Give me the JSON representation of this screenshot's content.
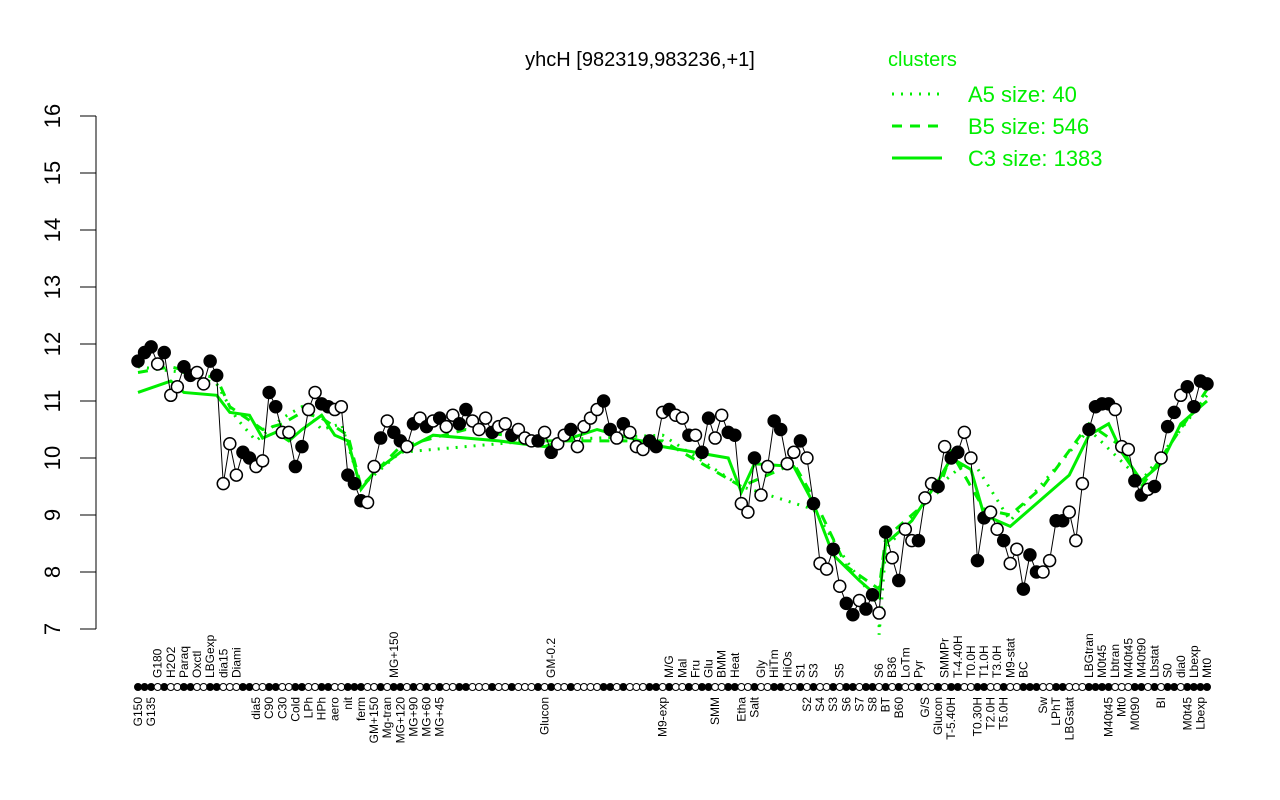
{
  "chart_data": {
    "type": "line",
    "title": "yhcH [982319,983236,+1]",
    "xlabel": "",
    "ylabel": "",
    "ylim": [
      7,
      16
    ],
    "yticks": [
      7,
      8,
      9,
      10,
      11,
      12,
      13,
      14,
      15,
      16
    ],
    "grid": false,
    "legend": {
      "title": "clusters",
      "placement": "top-right",
      "color": "#00ee00",
      "entries": [
        {
          "label": "A5 size: 40",
          "style": "dotted"
        },
        {
          "label": "B5 size: 546",
          "style": "dashed"
        },
        {
          "label": "C3 size: 1383",
          "style": "solid"
        }
      ]
    },
    "points": [
      [
        "G150",
        11.7,
        1
      ],
      [
        "",
        11.85,
        1
      ],
      [
        "G135",
        11.95,
        1
      ],
      [
        "G180",
        11.65,
        0
      ],
      [
        "",
        11.85,
        1
      ],
      [
        "H2O2",
        11.1,
        0
      ],
      [
        "",
        11.25,
        0
      ],
      [
        "Paraq",
        11.6,
        1
      ],
      [
        "",
        11.45,
        1
      ],
      [
        "Oxctl",
        11.5,
        0
      ],
      [
        "",
        11.3,
        0
      ],
      [
        "LBGexp",
        11.7,
        1
      ],
      [
        "",
        11.45,
        1
      ],
      [
        "dia15",
        9.55,
        0
      ],
      [
        "",
        10.25,
        0
      ],
      [
        "Diami",
        9.7,
        0
      ],
      [
        "",
        10.1,
        1
      ],
      [
        "",
        10.0,
        1
      ],
      [
        "dia5",
        9.85,
        0
      ],
      [
        "",
        9.95,
        0
      ],
      [
        "C90",
        11.15,
        1
      ],
      [
        "",
        10.9,
        1
      ],
      [
        "C30",
        10.45,
        0
      ],
      [
        "",
        10.45,
        0
      ],
      [
        "Cold",
        9.85,
        1
      ],
      [
        "",
        10.2,
        1
      ],
      [
        "LPh",
        10.85,
        0
      ],
      [
        "",
        11.15,
        0
      ],
      [
        "HPh",
        10.95,
        1
      ],
      [
        "",
        10.9,
        1
      ],
      [
        "aero",
        10.85,
        0
      ],
      [
        "",
        10.9,
        0
      ],
      [
        "nit",
        9.7,
        1
      ],
      [
        "",
        9.55,
        1
      ],
      [
        "ferm",
        9.25,
        1
      ],
      [
        "",
        9.22,
        0
      ],
      [
        "GM+150",
        9.85,
        0
      ],
      [
        "",
        10.35,
        1
      ],
      [
        "Mg-tran",
        10.65,
        0
      ],
      [
        "MG+150",
        10.45,
        1
      ],
      [
        "MG+120",
        10.3,
        1
      ],
      [
        "",
        10.2,
        0
      ],
      [
        "MG+90",
        10.6,
        1
      ],
      [
        "",
        10.7,
        0
      ],
      [
        "MG+60",
        10.55,
        1
      ],
      [
        "",
        10.65,
        0
      ],
      [
        "MG+45",
        10.7,
        1
      ],
      [
        "",
        10.55,
        0
      ],
      [
        "",
        10.75,
        0
      ],
      [
        "",
        10.6,
        1
      ],
      [
        "",
        10.85,
        1
      ],
      [
        "",
        10.65,
        0
      ],
      [
        "",
        10.5,
        0
      ],
      [
        "",
        10.7,
        0
      ],
      [
        "",
        10.45,
        1
      ],
      [
        "",
        10.55,
        0
      ],
      [
        "",
        10.6,
        0
      ],
      [
        "",
        10.4,
        1
      ],
      [
        "",
        10.5,
        0
      ],
      [
        "",
        10.35,
        0
      ],
      [
        "",
        10.3,
        0
      ],
      [
        "",
        10.3,
        1
      ],
      [
        "Glucon",
        10.45,
        0
      ],
      [
        "GM-0.2",
        10.1,
        1
      ],
      [
        "",
        10.25,
        0
      ],
      [
        "",
        10.4,
        0
      ],
      [
        "",
        10.5,
        1
      ],
      [
        "",
        10.2,
        0
      ],
      [
        "",
        10.55,
        0
      ],
      [
        "",
        10.7,
        0
      ],
      [
        "",
        10.85,
        0
      ],
      [
        "",
        11.0,
        1
      ],
      [
        "",
        10.5,
        1
      ],
      [
        "",
        10.35,
        0
      ],
      [
        "",
        10.6,
        1
      ],
      [
        "",
        10.45,
        0
      ],
      [
        "",
        10.2,
        0
      ],
      [
        "",
        10.15,
        0
      ],
      [
        "",
        10.3,
        1
      ],
      [
        "",
        10.2,
        1
      ],
      [
        "M9-exp",
        10.8,
        0
      ],
      [
        "M/G",
        10.85,
        1
      ],
      [
        "",
        10.75,
        0
      ],
      [
        "Mal",
        10.7,
        0
      ],
      [
        "",
        10.4,
        1
      ],
      [
        "Fru",
        10.4,
        0
      ],
      [
        "",
        10.1,
        1
      ],
      [
        "Glu",
        10.7,
        1
      ],
      [
        "SMM",
        10.35,
        0
      ],
      [
        "BMM",
        10.75,
        0
      ],
      [
        "",
        10.45,
        1
      ],
      [
        "Heat",
        10.4,
        1
      ],
      [
        "Etha",
        9.2,
        0
      ],
      [
        "",
        9.05,
        0
      ],
      [
        "Salt",
        10.0,
        1
      ],
      [
        "Gly",
        9.35,
        0
      ],
      [
        "",
        9.85,
        0
      ],
      [
        "HiTm",
        10.65,
        1
      ],
      [
        "",
        10.5,
        1
      ],
      [
        "HiOs",
        9.9,
        0
      ],
      [
        "",
        10.1,
        0
      ],
      [
        "S1",
        10.3,
        1
      ],
      [
        "S2",
        10.0,
        0
      ],
      [
        "S3",
        9.2,
        1
      ],
      [
        "S4",
        8.15,
        0
      ],
      [
        "",
        8.05,
        0
      ],
      [
        "S3",
        8.4,
        1
      ],
      [
        "S5",
        7.75,
        0
      ],
      [
        "S6",
        7.45,
        1
      ],
      [
        "",
        7.25,
        1
      ],
      [
        "S7",
        7.5,
        0
      ],
      [
        "",
        7.35,
        1
      ],
      [
        "S8",
        7.6,
        1
      ],
      [
        "S6",
        7.28,
        0
      ],
      [
        "BT",
        8.7,
        1
      ],
      [
        "B36",
        8.25,
        0
      ],
      [
        "B60",
        7.85,
        1
      ],
      [
        "LoTm",
        8.75,
        0
      ],
      [
        "",
        8.55,
        0
      ],
      [
        "Pyr",
        8.55,
        1
      ],
      [
        "G/S",
        9.3,
        0
      ],
      [
        "",
        9.55,
        0
      ],
      [
        "Glucon",
        9.5,
        1
      ],
      [
        "SMMPr",
        10.2,
        0
      ],
      [
        "T-5.40H",
        10.0,
        1
      ],
      [
        "T-4.40H",
        10.1,
        1
      ],
      [
        "",
        10.45,
        0
      ],
      [
        "T0.0H",
        10.0,
        0
      ],
      [
        "T0.30H",
        8.2,
        1
      ],
      [
        "T1.0H",
        8.95,
        1
      ],
      [
        "T2.0H",
        9.05,
        0
      ],
      [
        "T3.0H",
        8.75,
        0
      ],
      [
        "T5.0H",
        8.55,
        1
      ],
      [
        "M9-stat",
        8.15,
        0
      ],
      [
        "",
        8.4,
        0
      ],
      [
        "BC",
        7.7,
        1
      ],
      [
        "",
        8.3,
        1
      ],
      [
        "",
        8.0,
        1
      ],
      [
        "Sw",
        8.0,
        0
      ],
      [
        "",
        8.2,
        0
      ],
      [
        "LPhT",
        8.9,
        1
      ],
      [
        "",
        8.9,
        1
      ],
      [
        "LBGstat",
        9.05,
        0
      ],
      [
        "",
        8.55,
        0
      ],
      [
        "",
        9.55,
        0
      ],
      [
        "LBGtran",
        10.5,
        1
      ],
      [
        "",
        10.9,
        1
      ],
      [
        "M0t45",
        10.95,
        1
      ],
      [
        "M40t45",
        10.95,
        1
      ],
      [
        "Lbtran",
        10.85,
        0
      ],
      [
        "Mt0",
        10.2,
        0
      ],
      [
        "M40t45",
        10.15,
        0
      ],
      [
        "M0t90",
        9.6,
        1
      ],
      [
        "M40t90",
        9.35,
        1
      ],
      [
        "",
        9.45,
        0
      ],
      [
        "Lbstat",
        9.5,
        1
      ],
      [
        "BI",
        10.0,
        0
      ],
      [
        "S0",
        10.55,
        1
      ],
      [
        "",
        10.8,
        1
      ],
      [
        "dia0",
        11.1,
        0
      ],
      [
        "M0t45",
        11.25,
        1
      ],
      [
        "Lbexp",
        10.9,
        1
      ],
      [
        "Lbexp",
        11.35,
        1
      ],
      [
        "Mt0",
        11.3,
        1
      ]
    ],
    "clusters": [
      {
        "name": "C3",
        "style": "solid",
        "points": [
          [
            0,
            11.15
          ],
          [
            5,
            11.35
          ],
          [
            7,
            11.15
          ],
          [
            12,
            11.1
          ],
          [
            14,
            10.8
          ],
          [
            17,
            10.75
          ],
          [
            19,
            10.35
          ],
          [
            21,
            10.45
          ],
          [
            23,
            10.3
          ],
          [
            25,
            10.5
          ],
          [
            28,
            10.75
          ],
          [
            30,
            10.4
          ],
          [
            32,
            10.3
          ],
          [
            34,
            9.45
          ],
          [
            36,
            9.75
          ],
          [
            40,
            10.1
          ],
          [
            45,
            10.4
          ],
          [
            55,
            10.3
          ],
          [
            62,
            10.2
          ],
          [
            70,
            10.5
          ],
          [
            80,
            10.2
          ],
          [
            90,
            10.0
          ],
          [
            92,
            9.4
          ],
          [
            94,
            9.9
          ],
          [
            100,
            9.85
          ],
          [
            103,
            9.2
          ],
          [
            106,
            8.3
          ],
          [
            110,
            7.85
          ],
          [
            113,
            7.55
          ],
          [
            114,
            8.5
          ],
          [
            118,
            8.9
          ],
          [
            122,
            9.6
          ],
          [
            124,
            10.0
          ],
          [
            127,
            9.8
          ],
          [
            129,
            9.0
          ],
          [
            133,
            8.8
          ],
          [
            138,
            9.3
          ],
          [
            142,
            9.7
          ],
          [
            145,
            10.4
          ],
          [
            148,
            10.6
          ],
          [
            150,
            10.1
          ],
          [
            153,
            9.6
          ],
          [
            156,
            9.9
          ],
          [
            159,
            10.6
          ],
          [
            163,
            11.0
          ]
        ]
      },
      {
        "name": "B5",
        "style": "dashed",
        "points": [
          [
            0,
            11.5
          ],
          [
            5,
            11.6
          ],
          [
            12,
            11.4
          ],
          [
            14,
            10.9
          ],
          [
            19,
            10.5
          ],
          [
            22,
            10.6
          ],
          [
            25,
            10.8
          ],
          [
            28,
            10.7
          ],
          [
            32,
            10.4
          ],
          [
            34,
            9.5
          ],
          [
            40,
            10.2
          ],
          [
            50,
            10.5
          ],
          [
            62,
            10.3
          ],
          [
            80,
            10.3
          ],
          [
            92,
            9.5
          ],
          [
            100,
            9.9
          ],
          [
            103,
            9.3
          ],
          [
            108,
            8.1
          ],
          [
            113,
            7.7
          ],
          [
            114,
            8.6
          ],
          [
            122,
            9.4
          ],
          [
            124,
            10.1
          ],
          [
            129,
            9.1
          ],
          [
            133,
            9.0
          ],
          [
            138,
            9.5
          ],
          [
            145,
            10.6
          ],
          [
            150,
            10.2
          ],
          [
            153,
            9.5
          ],
          [
            156,
            10.0
          ],
          [
            163,
            11.2
          ]
        ]
      },
      {
        "name": "A5",
        "style": "dotted",
        "points": [
          [
            0,
            11.6
          ],
          [
            7,
            11.5
          ],
          [
            12,
            11.3
          ],
          [
            15,
            10.7
          ],
          [
            18,
            10.3
          ],
          [
            22,
            10.7
          ],
          [
            25,
            10.9
          ],
          [
            28,
            10.5
          ],
          [
            31,
            10.6
          ],
          [
            34,
            9.5
          ],
          [
            40,
            10.1
          ],
          [
            60,
            10.3
          ],
          [
            80,
            10.4
          ],
          [
            92,
            9.5
          ],
          [
            103,
            9.1
          ],
          [
            108,
            8.2
          ],
          [
            113,
            7.4
          ],
          [
            113,
            6.9
          ],
          [
            114,
            8.4
          ],
          [
            122,
            9.5
          ],
          [
            127,
            10.0
          ],
          [
            133,
            8.9
          ],
          [
            145,
            10.5
          ],
          [
            153,
            9.6
          ],
          [
            163,
            11.1
          ]
        ]
      }
    ]
  }
}
